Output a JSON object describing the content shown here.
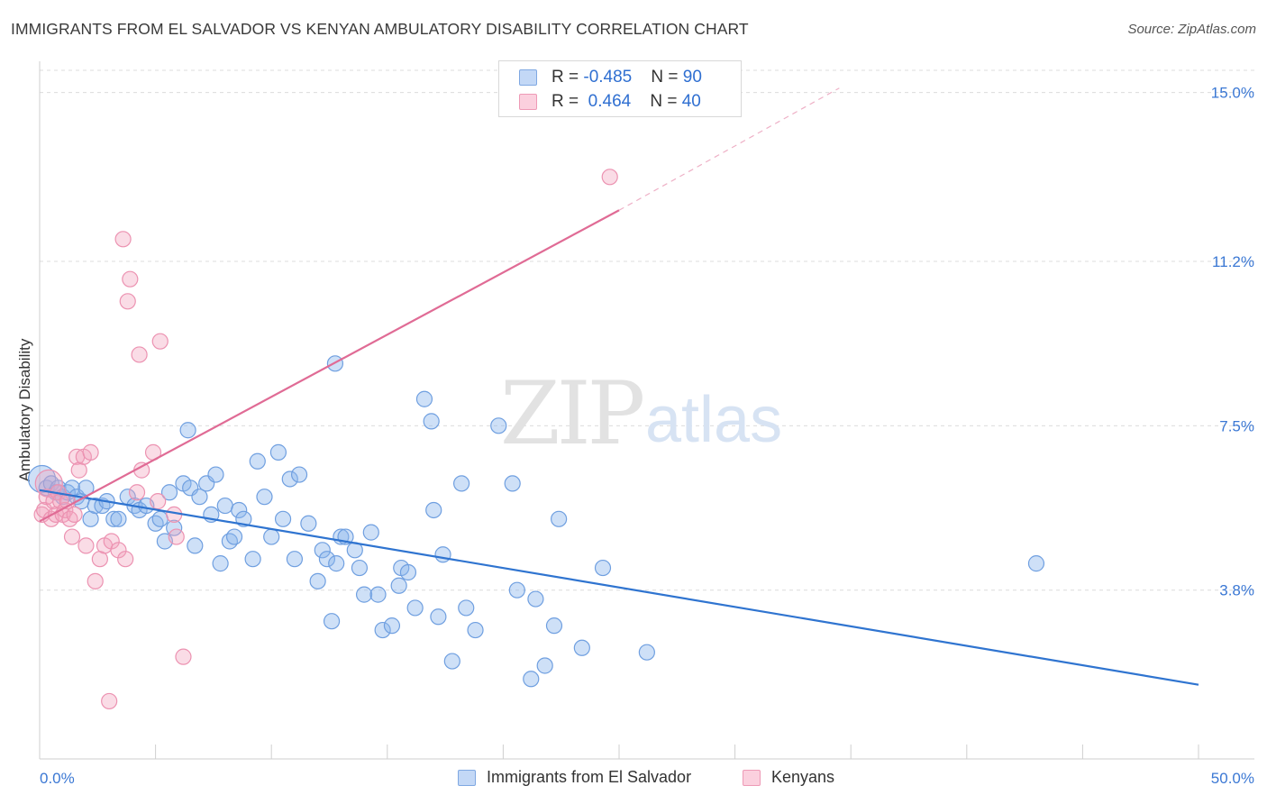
{
  "title": "IMMIGRANTS FROM EL SALVADOR VS KENYAN AMBULATORY DISABILITY CORRELATION CHART",
  "source": "Source: ZipAtlas.com",
  "watermark": {
    "zip": "ZIP",
    "atlas": "atlas"
  },
  "legend_top": [
    {
      "r_label": "R = ",
      "r_value": "-0.485",
      "n_label": "N = ",
      "n_value": "90"
    },
    {
      "r_label": "R = ",
      "r_value": " 0.464",
      "n_label": "N = ",
      "n_value": "40"
    }
  ],
  "chart_data": {
    "type": "scatter",
    "title": "IMMIGRANTS FROM EL SALVADOR VS KENYAN AMBULATORY DISABILITY CORRELATION CHART",
    "xlabel": "",
    "ylabel": "Ambulatory Disability",
    "xlim": [
      0,
      50
    ],
    "ylim": [
      0,
      15.5
    ],
    "x_tick_labels": [
      "0.0%",
      "50.0%"
    ],
    "y_ticks": [
      3.8,
      7.5,
      11.2,
      15.0
    ],
    "y_tick_labels": [
      "3.8%",
      "7.5%",
      "11.2%",
      "15.0%"
    ],
    "grid": true,
    "legend": "bottom-center",
    "series": [
      {
        "name": "Immigrants from El Salvador",
        "color": "#8ab4ec",
        "line_color": "#2f74d0",
        "R": -0.485,
        "N": 90,
        "trend": {
          "x": [
            0,
            50
          ],
          "y": [
            6.05,
            1.67
          ]
        },
        "points": [
          [
            0.1,
            6.3
          ],
          [
            0.3,
            6.1
          ],
          [
            0.5,
            6.2
          ],
          [
            0.7,
            6.0
          ],
          [
            0.8,
            6.1
          ],
          [
            1.0,
            5.9
          ],
          [
            1.2,
            6.0
          ],
          [
            1.4,
            6.1
          ],
          [
            1.6,
            5.9
          ],
          [
            1.8,
            5.8
          ],
          [
            2.0,
            6.1
          ],
          [
            2.2,
            5.4
          ],
          [
            2.4,
            5.7
          ],
          [
            2.7,
            5.7
          ],
          [
            2.9,
            5.8
          ],
          [
            3.2,
            5.4
          ],
          [
            3.4,
            5.4
          ],
          [
            3.8,
            5.9
          ],
          [
            4.1,
            5.7
          ],
          [
            4.3,
            5.6
          ],
          [
            4.6,
            5.7
          ],
          [
            5.0,
            5.3
          ],
          [
            5.2,
            5.4
          ],
          [
            5.4,
            4.9
          ],
          [
            5.6,
            6.0
          ],
          [
            5.8,
            5.2
          ],
          [
            6.2,
            6.2
          ],
          [
            6.4,
            7.4
          ],
          [
            6.5,
            6.1
          ],
          [
            6.7,
            4.8
          ],
          [
            6.9,
            5.9
          ],
          [
            7.2,
            6.2
          ],
          [
            7.4,
            5.5
          ],
          [
            7.6,
            6.4
          ],
          [
            7.8,
            4.4
          ],
          [
            8.0,
            5.7
          ],
          [
            8.2,
            4.9
          ],
          [
            8.4,
            5.0
          ],
          [
            8.6,
            5.6
          ],
          [
            8.8,
            5.4
          ],
          [
            9.2,
            4.5
          ],
          [
            9.4,
            6.7
          ],
          [
            9.7,
            5.9
          ],
          [
            10.0,
            5.0
          ],
          [
            10.3,
            6.9
          ],
          [
            10.5,
            5.4
          ],
          [
            10.8,
            6.3
          ],
          [
            11.0,
            4.5
          ],
          [
            11.2,
            6.4
          ],
          [
            11.6,
            5.3
          ],
          [
            12.0,
            4.0
          ],
          [
            12.2,
            4.7
          ],
          [
            12.4,
            4.5
          ],
          [
            12.6,
            3.1
          ],
          [
            12.8,
            4.4
          ],
          [
            13.0,
            5.0
          ],
          [
            13.2,
            5.0
          ],
          [
            13.6,
            4.7
          ],
          [
            13.8,
            4.3
          ],
          [
            14.0,
            3.7
          ],
          [
            14.3,
            5.1
          ],
          [
            14.6,
            3.7
          ],
          [
            14.8,
            2.9
          ],
          [
            15.2,
            3.0
          ],
          [
            15.6,
            4.3
          ],
          [
            15.9,
            4.2
          ],
          [
            16.2,
            3.4
          ],
          [
            16.6,
            8.1
          ],
          [
            16.9,
            7.6
          ],
          [
            17.2,
            3.2
          ],
          [
            17.4,
            4.6
          ],
          [
            18.2,
            6.2
          ],
          [
            18.4,
            3.4
          ],
          [
            18.8,
            2.9
          ],
          [
            19.8,
            7.5
          ],
          [
            20.4,
            6.2
          ],
          [
            20.6,
            3.8
          ],
          [
            21.2,
            1.8
          ],
          [
            21.4,
            3.6
          ],
          [
            21.8,
            2.1
          ],
          [
            22.2,
            3.0
          ],
          [
            22.4,
            5.4
          ],
          [
            12.75,
            8.9
          ],
          [
            15.5,
            3.9
          ],
          [
            17.8,
            2.2
          ],
          [
            23.4,
            2.5
          ],
          [
            24.3,
            4.3
          ],
          [
            26.2,
            2.4
          ],
          [
            43.0,
            4.4
          ],
          [
            17.0,
            5.6
          ]
        ]
      },
      {
        "name": "Kenyans",
        "color": "#f3a3bd",
        "line_color": "#e06b95",
        "R": 0.464,
        "N": 40,
        "trend": {
          "x": [
            0,
            25
          ],
          "y": [
            5.35,
            12.35
          ]
        },
        "trend_dashed": {
          "x": [
            25,
            34.5
          ],
          "y": [
            12.35,
            15.1
          ]
        },
        "points": [
          [
            0.1,
            5.5
          ],
          [
            0.2,
            5.6
          ],
          [
            0.3,
            5.9
          ],
          [
            0.4,
            6.2
          ],
          [
            0.5,
            5.4
          ],
          [
            0.6,
            5.8
          ],
          [
            0.7,
            5.5
          ],
          [
            0.8,
            6.0
          ],
          [
            0.9,
            5.8
          ],
          [
            1.0,
            5.5
          ],
          [
            1.1,
            5.6
          ],
          [
            1.2,
            5.8
          ],
          [
            1.3,
            5.4
          ],
          [
            1.4,
            5.0
          ],
          [
            1.5,
            5.5
          ],
          [
            1.6,
            6.8
          ],
          [
            1.7,
            6.5
          ],
          [
            1.9,
            6.8
          ],
          [
            2.0,
            4.8
          ],
          [
            2.2,
            6.9
          ],
          [
            2.4,
            4.0
          ],
          [
            2.6,
            4.5
          ],
          [
            2.8,
            4.8
          ],
          [
            3.0,
            1.3
          ],
          [
            3.1,
            4.9
          ],
          [
            3.4,
            4.7
          ],
          [
            3.6,
            11.7
          ],
          [
            3.7,
            4.5
          ],
          [
            3.8,
            10.3
          ],
          [
            3.9,
            10.8
          ],
          [
            4.2,
            6.0
          ],
          [
            4.3,
            9.1
          ],
          [
            4.4,
            6.5
          ],
          [
            4.9,
            6.9
          ],
          [
            5.1,
            5.8
          ],
          [
            5.2,
            9.4
          ],
          [
            5.8,
            5.5
          ],
          [
            5.9,
            5.0
          ],
          [
            6.2,
            2.3
          ],
          [
            24.6,
            13.1
          ]
        ]
      }
    ]
  }
}
